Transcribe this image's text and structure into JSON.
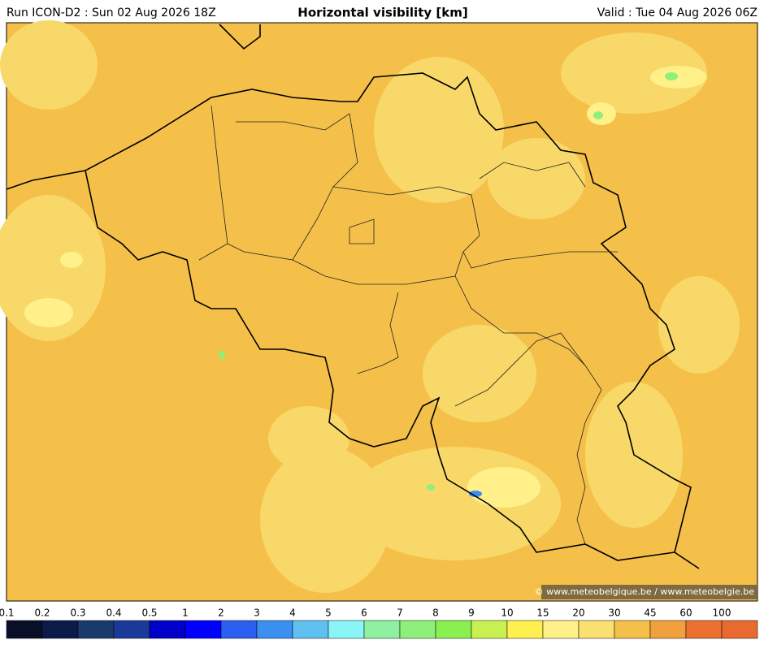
{
  "header": {
    "run": "Run ICON-D2 : Sun 02 Aug 2026 18Z",
    "title": "Horizontal visibility [km]",
    "valid": "Valid : Tue 04 Aug 2026 06Z"
  },
  "map": {
    "credit": "© www.meteobelgique.be / www.meteobelgie.be"
  },
  "colorbar": {
    "ticks": [
      0.1,
      0.2,
      0.3,
      0.4,
      0.5,
      1,
      2,
      3,
      4,
      5,
      6,
      7,
      8,
      9,
      10,
      15,
      20,
      30,
      45,
      60,
      100
    ],
    "colors": [
      "#0a0f28",
      "#0c1a4a",
      "#1a3a6e",
      "#1a3a9a",
      "#0000c8",
      "#0000ff",
      "#2a5ff0",
      "#3a8ff0",
      "#60c0f0",
      "#8af5f5",
      "#8ef0a0",
      "#8ef07a",
      "#8af050",
      "#c8f050",
      "#fff050",
      "#fff08a",
      "#fae070",
      "#f5c04a",
      "#f0a03c",
      "#eb7032",
      "#e86a30"
    ]
  }
}
